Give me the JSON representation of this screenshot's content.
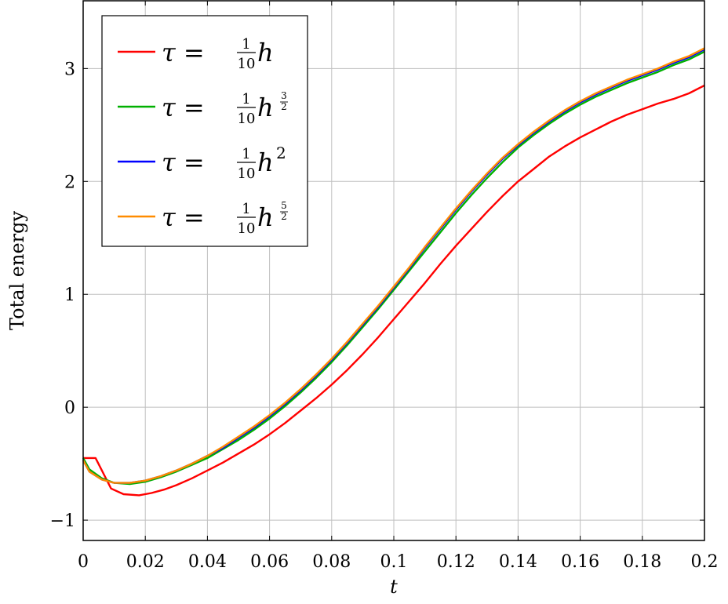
{
  "chart_data": {
    "type": "line",
    "title": "",
    "xlabel": "t",
    "ylabel": "Total energy",
    "xlim": [
      0,
      0.2
    ],
    "ylim": [
      -1.18,
      3.6
    ],
    "grid": true,
    "legend_position": "top-left",
    "x_ticks": [
      {
        "value": 0,
        "label": "0"
      },
      {
        "value": 0.02,
        "label": "0.02"
      },
      {
        "value": 0.04,
        "label": "0.04"
      },
      {
        "value": 0.06,
        "label": "0.06"
      },
      {
        "value": 0.08,
        "label": "0.08"
      },
      {
        "value": 0.1,
        "label": "0.1"
      },
      {
        "value": 0.12,
        "label": "0.12"
      },
      {
        "value": 0.14,
        "label": "0.14"
      },
      {
        "value": 0.16,
        "label": "0.16"
      },
      {
        "value": 0.18,
        "label": "0.18"
      },
      {
        "value": 0.2,
        "label": "0.2"
      }
    ],
    "y_ticks": [
      {
        "value": -1,
        "label": "−1"
      },
      {
        "value": 0,
        "label": "0"
      },
      {
        "value": 1,
        "label": "1"
      },
      {
        "value": 2,
        "label": "2"
      },
      {
        "value": 3,
        "label": "3"
      }
    ],
    "series": [
      {
        "name": "τ = 1/10 h",
        "legend": {
          "lhs": "τ = ",
          "num": "1",
          "den": "10",
          "base": "h",
          "exp_num": "",
          "exp_den": ""
        },
        "color": "#ff0000",
        "x": [
          0,
          0.004,
          0.009,
          0.013,
          0.018,
          0.022,
          0.026,
          0.03,
          0.035,
          0.04,
          0.045,
          0.05,
          0.055,
          0.06,
          0.065,
          0.07,
          0.075,
          0.08,
          0.085,
          0.09,
          0.095,
          0.1,
          0.105,
          0.11,
          0.115,
          0.12,
          0.125,
          0.13,
          0.135,
          0.14,
          0.145,
          0.15,
          0.155,
          0.16,
          0.165,
          0.17,
          0.175,
          0.18,
          0.185,
          0.19,
          0.195,
          0.2
        ],
        "y": [
          -0.45,
          -0.45,
          -0.72,
          -0.77,
          -0.78,
          -0.76,
          -0.73,
          -0.69,
          -0.63,
          -0.56,
          -0.49,
          -0.41,
          -0.33,
          -0.24,
          -0.14,
          -0.03,
          0.08,
          0.2,
          0.33,
          0.47,
          0.62,
          0.78,
          0.94,
          1.1,
          1.27,
          1.43,
          1.58,
          1.73,
          1.87,
          2.0,
          2.11,
          2.22,
          2.31,
          2.39,
          2.46,
          2.53,
          2.59,
          2.64,
          2.69,
          2.73,
          2.78,
          2.85
        ]
      },
      {
        "name": "τ = 1/10 h^(3/2)",
        "legend": {
          "lhs": "τ = ",
          "num": "1",
          "den": "10",
          "base": "h",
          "exp_num": "3",
          "exp_den": "2"
        },
        "color": "#00b000",
        "x": [
          0,
          0.002,
          0.006,
          0.01,
          0.015,
          0.02,
          0.025,
          0.03,
          0.035,
          0.04,
          0.045,
          0.05,
          0.055,
          0.06,
          0.065,
          0.07,
          0.075,
          0.08,
          0.085,
          0.09,
          0.095,
          0.1,
          0.105,
          0.11,
          0.115,
          0.12,
          0.125,
          0.13,
          0.135,
          0.14,
          0.145,
          0.15,
          0.155,
          0.16,
          0.165,
          0.17,
          0.175,
          0.18,
          0.185,
          0.19,
          0.195,
          0.2
        ],
        "y": [
          -0.45,
          -0.55,
          -0.63,
          -0.67,
          -0.68,
          -0.66,
          -0.62,
          -0.57,
          -0.51,
          -0.45,
          -0.37,
          -0.29,
          -0.2,
          -0.1,
          0.01,
          0.13,
          0.26,
          0.4,
          0.55,
          0.71,
          0.87,
          1.04,
          1.21,
          1.38,
          1.55,
          1.72,
          1.88,
          2.03,
          2.17,
          2.3,
          2.41,
          2.51,
          2.6,
          2.68,
          2.75,
          2.81,
          2.87,
          2.92,
          2.97,
          3.03,
          3.08,
          3.15
        ]
      },
      {
        "name": "τ = 1/10 h^2",
        "legend": {
          "lhs": "τ = ",
          "num": "1",
          "den": "10",
          "base": "h",
          "exp_num": "2",
          "exp_den": ""
        },
        "color": "#0000ff",
        "x": [
          0,
          0.002,
          0.006,
          0.01,
          0.015,
          0.02,
          0.025,
          0.03,
          0.035,
          0.04,
          0.045,
          0.05,
          0.055,
          0.06,
          0.065,
          0.07,
          0.075,
          0.08,
          0.085,
          0.09,
          0.095,
          0.1,
          0.105,
          0.11,
          0.115,
          0.12,
          0.125,
          0.13,
          0.135,
          0.14,
          0.145,
          0.15,
          0.155,
          0.16,
          0.165,
          0.17,
          0.175,
          0.18,
          0.185,
          0.19,
          0.195,
          0.2
        ],
        "y": [
          -0.47,
          -0.57,
          -0.64,
          -0.67,
          -0.67,
          -0.65,
          -0.61,
          -0.56,
          -0.5,
          -0.43,
          -0.36,
          -0.27,
          -0.18,
          -0.08,
          0.03,
          0.15,
          0.28,
          0.42,
          0.57,
          0.73,
          0.89,
          1.06,
          1.23,
          1.41,
          1.58,
          1.75,
          1.91,
          2.06,
          2.2,
          2.32,
          2.43,
          2.53,
          2.62,
          2.7,
          2.77,
          2.83,
          2.89,
          2.94,
          2.99,
          3.05,
          3.1,
          3.17
        ]
      },
      {
        "name": "τ = 1/10 h^(5/2)",
        "legend": {
          "lhs": "τ = ",
          "num": "1",
          "den": "10",
          "base": "h",
          "exp_num": "5",
          "exp_den": "2"
        },
        "color": "#ff8c00",
        "x": [
          0,
          0.002,
          0.006,
          0.01,
          0.015,
          0.02,
          0.025,
          0.03,
          0.035,
          0.04,
          0.045,
          0.05,
          0.055,
          0.06,
          0.065,
          0.07,
          0.075,
          0.08,
          0.085,
          0.09,
          0.095,
          0.1,
          0.105,
          0.11,
          0.115,
          0.12,
          0.125,
          0.13,
          0.135,
          0.14,
          0.145,
          0.15,
          0.155,
          0.16,
          0.165,
          0.17,
          0.175,
          0.18,
          0.185,
          0.19,
          0.195,
          0.2
        ],
        "y": [
          -0.47,
          -0.57,
          -0.64,
          -0.67,
          -0.67,
          -0.65,
          -0.61,
          -0.56,
          -0.5,
          -0.43,
          -0.35,
          -0.26,
          -0.17,
          -0.07,
          0.04,
          0.16,
          0.29,
          0.43,
          0.58,
          0.74,
          0.9,
          1.07,
          1.24,
          1.42,
          1.59,
          1.76,
          1.92,
          2.07,
          2.21,
          2.33,
          2.44,
          2.54,
          2.63,
          2.71,
          2.78,
          2.84,
          2.9,
          2.95,
          3.0,
          3.06,
          3.11,
          3.18
        ]
      }
    ]
  }
}
